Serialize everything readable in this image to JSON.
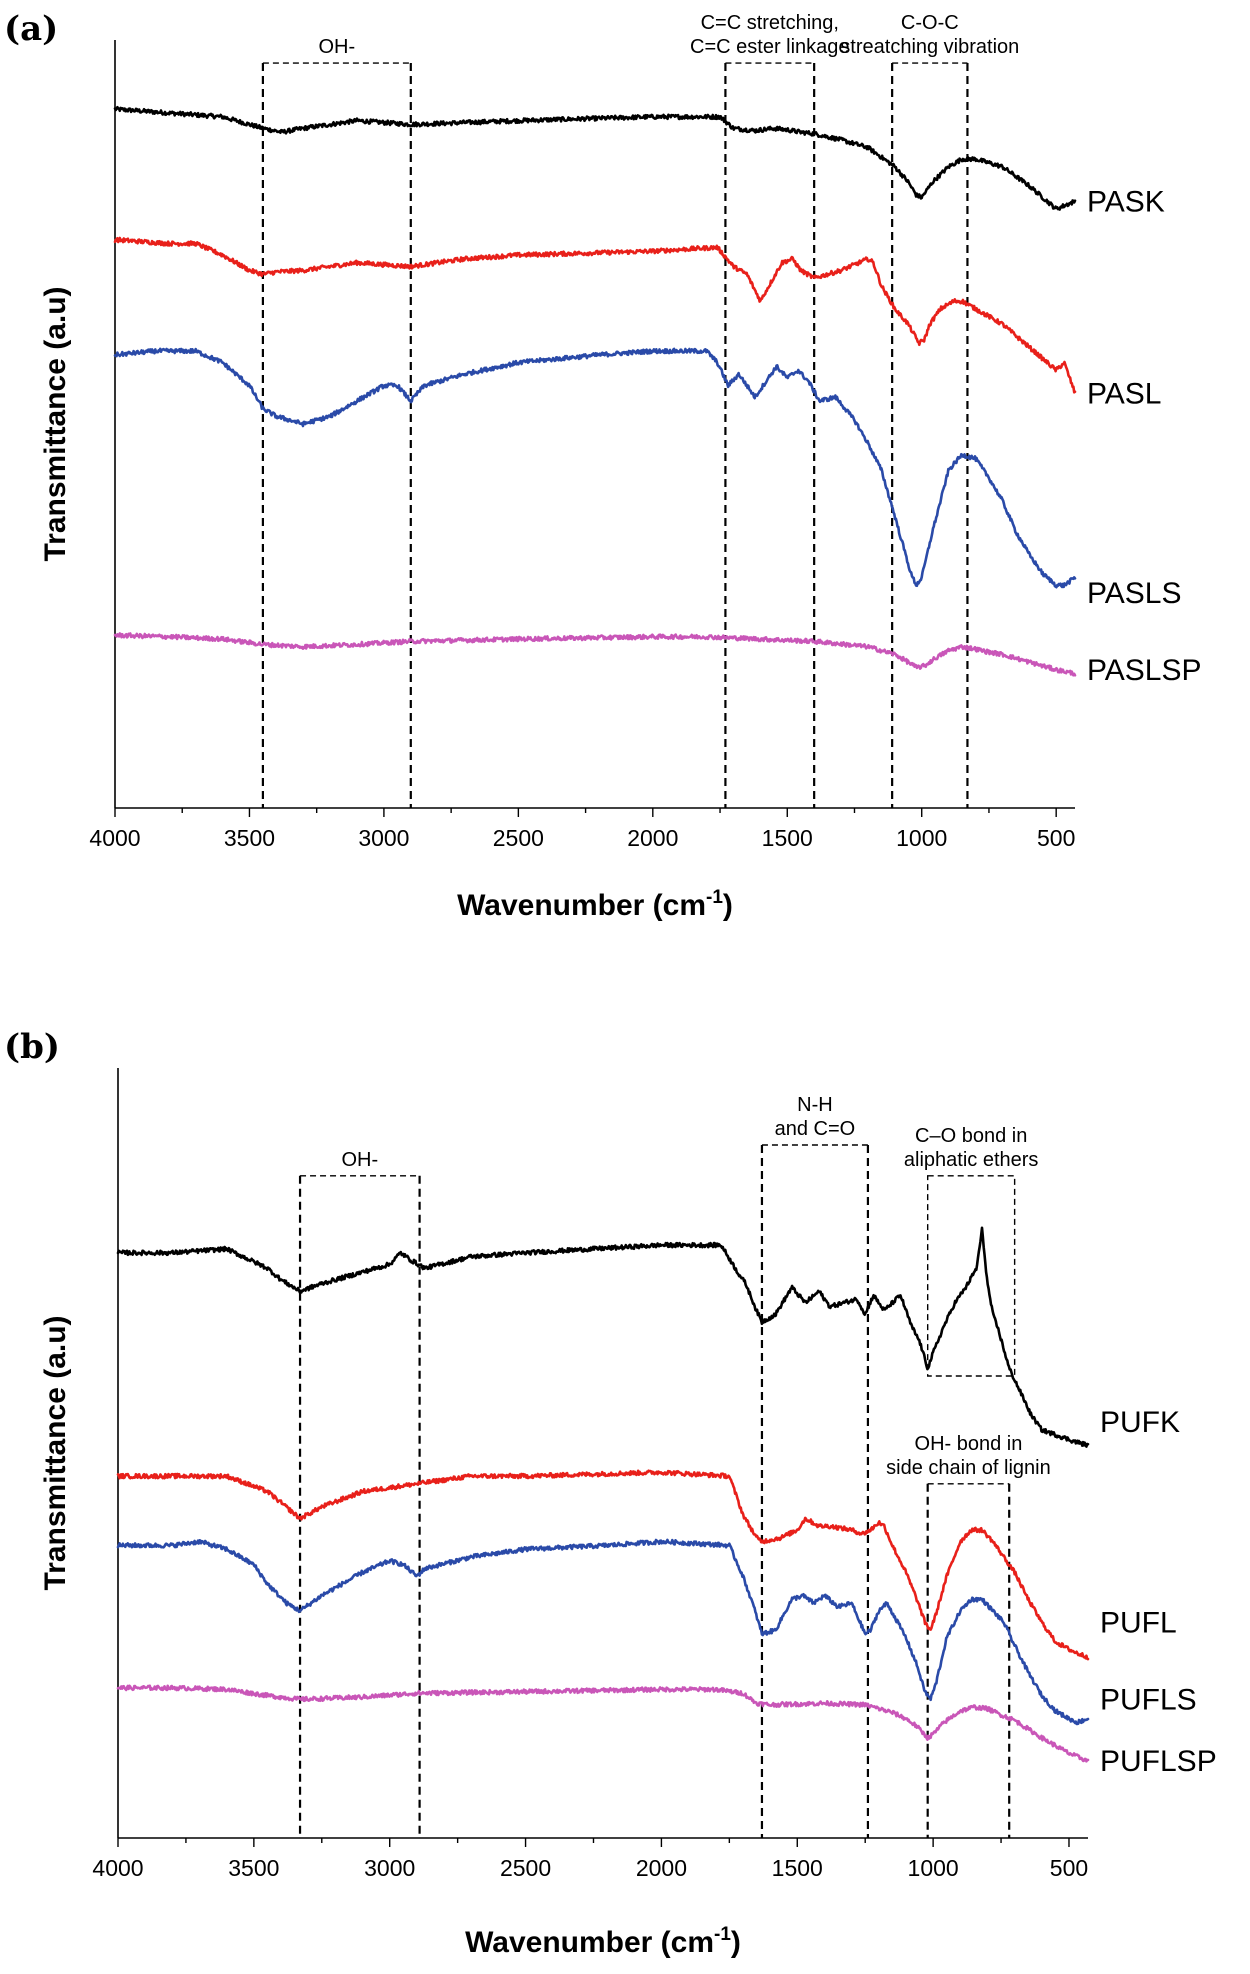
{
  "chart_data": [
    {
      "type": "line",
      "panel_label": "(a)",
      "xlabel": "Wavenumber (cm",
      "xlabel_sup": "-1",
      "xlabel_close": ")",
      "ylabel": "Transmittance (a.u)",
      "xlim": [
        4000,
        430
      ],
      "x_reversed": true,
      "ylim": [
        0,
        100
      ],
      "x_ticks": [
        4000,
        3500,
        3000,
        2500,
        2000,
        1500,
        1000,
        500
      ],
      "y_ticks_shown": false,
      "grid": false,
      "legend": "inline-right",
      "annotations": [
        {
          "lines": [
            "OH-"
          ],
          "x_range": [
            3450,
            2900
          ],
          "top": 97
        },
        {
          "lines": [
            "C=C stretching,",
            "C=C ester linkage"
          ],
          "x_range": [
            1730,
            1400
          ],
          "top": 97
        },
        {
          "lines": [
            "C-O-C",
            "streatching vibration"
          ],
          "x_range": [
            1110,
            830
          ],
          "top": 97
        }
      ],
      "series": [
        {
          "name": "PASK",
          "color": "#000000",
          "label_value": 79,
          "x": [
            4000,
            3800,
            3600,
            3450,
            3380,
            3300,
            3100,
            2900,
            2500,
            2000,
            1750,
            1700,
            1620,
            1550,
            1500,
            1450,
            1400,
            1300,
            1200,
            1100,
            1050,
            1020,
            1000,
            960,
            900,
            850,
            800,
            700,
            600,
            500,
            430
          ],
          "y": [
            91,
            90.5,
            90,
            88.5,
            88,
            88.5,
            89.5,
            89,
            89.5,
            90,
            90,
            88.5,
            88.2,
            88.5,
            88.3,
            88,
            87.8,
            87,
            86,
            83.5,
            81.5,
            79.8,
            79.5,
            81.5,
            83.5,
            84.5,
            84.5,
            83.5,
            81,
            78,
            79
          ]
        },
        {
          "name": "PASL",
          "color": "#e8201a",
          "label_value": 54,
          "x": [
            4000,
            3800,
            3700,
            3600,
            3500,
            3450,
            3400,
            3300,
            3100,
            2900,
            2700,
            2500,
            2000,
            1760,
            1700,
            1650,
            1600,
            1560,
            1520,
            1480,
            1450,
            1400,
            1300,
            1200,
            1180,
            1150,
            1100,
            1050,
            1010,
            990,
            970,
            930,
            880,
            850,
            800,
            700,
            600,
            500,
            470,
            430
          ],
          "y": [
            74,
            73.5,
            73.5,
            72,
            70,
            69.5,
            69.8,
            70,
            71,
            70.5,
            71.5,
            72,
            72.5,
            73,
            70.5,
            69.5,
            66,
            68.5,
            71,
            71.5,
            70,
            69,
            70,
            71.5,
            71,
            68,
            65,
            63,
            60.5,
            61,
            63,
            65,
            66,
            66,
            65,
            63,
            60,
            57,
            58,
            54
          ]
        },
        {
          "name": "PASLS",
          "color": "#2a4aa8",
          "label_value": 28,
          "x": [
            4000,
            3850,
            3700,
            3600,
            3500,
            3450,
            3400,
            3300,
            3200,
            3100,
            3000,
            2950,
            2900,
            2850,
            2700,
            2500,
            2200,
            2000,
            1800,
            1760,
            1720,
            1680,
            1620,
            1580,
            1540,
            1500,
            1460,
            1420,
            1380,
            1320,
            1250,
            1200,
            1150,
            1100,
            1060,
            1040,
            1020,
            1000,
            960,
            900,
            850,
            800,
            750,
            700,
            650,
            600,
            550,
            500,
            470,
            430
          ],
          "y": [
            59,
            59.5,
            59.5,
            58,
            55,
            52,
            51,
            50,
            51,
            53,
            55,
            55,
            53,
            55,
            56.5,
            58,
            59,
            59.5,
            59.5,
            58,
            55,
            56.5,
            53.5,
            55.5,
            57.5,
            56,
            57,
            55.5,
            53,
            53.5,
            50.5,
            47.5,
            44,
            38,
            33,
            30.5,
            29,
            30,
            36,
            44,
            46,
            45.5,
            43,
            40,
            36,
            33,
            30.5,
            29,
            29,
            30
          ]
        },
        {
          "name": "PASLSP",
          "color": "#c956b8",
          "label_value": 18,
          "x": [
            4000,
            3800,
            3600,
            3450,
            3300,
            3100,
            2900,
            2500,
            2000,
            1800,
            1600,
            1400,
            1200,
            1100,
            1050,
            1020,
            990,
            950,
            900,
            850,
            800,
            750,
            700,
            600,
            500,
            430
          ],
          "y": [
            22.5,
            22.3,
            22,
            21.3,
            21,
            21.3,
            21.7,
            22,
            22.3,
            22.3,
            22,
            21.7,
            21,
            20,
            19,
            18.3,
            18.5,
            19.5,
            20.5,
            21,
            20.7,
            20.3,
            20,
            19,
            18,
            17.5
          ]
        }
      ]
    },
    {
      "type": "line",
      "panel_label": "(b)",
      "xlabel": "Wavenumber (cm",
      "xlabel_sup": "-1",
      "xlabel_close": ")",
      "ylabel": "Transmittance (a.u)",
      "xlim": [
        4000,
        430
      ],
      "x_reversed": true,
      "ylim": [
        0,
        100
      ],
      "x_ticks": [
        4000,
        3500,
        3000,
        2500,
        2000,
        1500,
        1000,
        500
      ],
      "y_ticks_shown": false,
      "grid": false,
      "legend": "inline-right",
      "annotations": [
        {
          "lines": [
            "OH-"
          ],
          "x_range": [
            3330,
            2890
          ],
          "top": 86
        },
        {
          "lines": [
            "N-H",
            "and C=O"
          ],
          "x_range": [
            1630,
            1240
          ],
          "top": 90
        },
        {
          "lines": [
            "C–O bond in",
            "aliphatic ethers"
          ],
          "x_range": [
            1020,
            700
          ],
          "top": 86,
          "bottom": 60
        },
        {
          "lines": [
            "OH- bond in",
            "side chain of lignin"
          ],
          "x_range": [
            1020,
            720
          ],
          "top": 46
        }
      ],
      "series": [
        {
          "name": "PUFK",
          "color": "#000000",
          "label_value": 54,
          "x": [
            4000,
            3800,
            3600,
            3450,
            3400,
            3330,
            3250,
            3100,
            3000,
            2960,
            2920,
            2870,
            2700,
            2500,
            2000,
            1780,
            1720,
            1690,
            1650,
            1630,
            1580,
            1520,
            1470,
            1420,
            1380,
            1330,
            1280,
            1250,
            1220,
            1180,
            1120,
            1080,
            1050,
            1020,
            1000,
            960,
            920,
            880,
            840,
            820,
            800,
            780,
            760,
            720,
            680,
            640,
            600,
            560,
            520,
            480,
            430
          ],
          "y": [
            76,
            76,
            76.5,
            74,
            72.5,
            71,
            72,
            73.5,
            74.5,
            76,
            75,
            74,
            75.5,
            76,
            77,
            77,
            73.5,
            72,
            68.5,
            67,
            68,
            71.5,
            69.5,
            71,
            69,
            69.5,
            70,
            68,
            70.5,
            68.5,
            70.5,
            66.5,
            64.5,
            61,
            63,
            66.5,
            69.5,
            71.5,
            74,
            79,
            72,
            68,
            66,
            61,
            58,
            55,
            53,
            52.5,
            52,
            51.5,
            51
          ]
        },
        {
          "name": "PUFL",
          "color": "#e8201a",
          "label_value": 28,
          "x": [
            4000,
            3800,
            3600,
            3450,
            3330,
            3250,
            3100,
            2900,
            2700,
            2500,
            2000,
            1750,
            1700,
            1650,
            1630,
            1560,
            1500,
            1470,
            1420,
            1380,
            1300,
            1260,
            1230,
            1200,
            1180,
            1150,
            1100,
            1060,
            1030,
            1010,
            990,
            950,
            900,
            860,
            820,
            780,
            740,
            700,
            650,
            600,
            550,
            500,
            470,
            430
          ],
          "y": [
            47,
            47,
            47,
            45,
            41.5,
            43,
            45,
            46,
            47,
            47,
            47.5,
            47,
            42,
            39,
            38.5,
            39,
            40,
            41.5,
            40.5,
            40.5,
            40,
            39.5,
            40,
            41,
            40.5,
            38,
            34.5,
            31,
            28,
            27,
            29,
            34,
            38.5,
            40,
            40,
            38.5,
            36.5,
            34.5,
            31,
            28,
            25.5,
            24.5,
            24,
            23.5
          ]
        },
        {
          "name": "PUFLS",
          "color": "#2a4aa8",
          "label_value": 18,
          "x": [
            4000,
            3800,
            3700,
            3600,
            3500,
            3450,
            3380,
            3330,
            3250,
            3100,
            3000,
            2950,
            2900,
            2870,
            2700,
            2500,
            2200,
            2000,
            1750,
            1700,
            1660,
            1630,
            1580,
            1520,
            1480,
            1440,
            1400,
            1350,
            1300,
            1250,
            1230,
            1200,
            1170,
            1130,
            1100,
            1060,
            1030,
            1010,
            990,
            950,
            900,
            860,
            820,
            780,
            740,
            700,
            650,
            600,
            550,
            500,
            470,
            430
          ],
          "y": [
            38,
            38,
            38.5,
            37.5,
            35.5,
            33,
            30.5,
            29.5,
            31.5,
            34.5,
            36,
            35.5,
            34,
            35,
            36.5,
            37.5,
            38,
            38.5,
            38,
            34,
            30,
            26.5,
            27,
            31,
            31.5,
            30.5,
            31.5,
            30,
            30.5,
            26.5,
            27,
            29.5,
            30.5,
            28,
            26,
            22.5,
            19,
            18,
            20,
            26,
            29.5,
            31,
            31,
            29.5,
            28,
            25,
            21.5,
            18.5,
            16.5,
            15.5,
            15,
            15.5
          ]
        },
        {
          "name": "PUFLSP",
          "color": "#c956b8",
          "label_value": 10,
          "x": [
            4000,
            3800,
            3600,
            3450,
            3330,
            3100,
            2900,
            2500,
            2000,
            1800,
            1700,
            1650,
            1600,
            1400,
            1250,
            1150,
            1100,
            1060,
            1020,
            1000,
            960,
            900,
            850,
            800,
            750,
            700,
            600,
            500,
            430
          ],
          "y": [
            19.5,
            19.5,
            19.3,
            18.5,
            18,
            18.3,
            18.8,
            19,
            19.3,
            19.3,
            18.8,
            17.5,
            17.3,
            17.5,
            17.3,
            16.3,
            15.5,
            14.5,
            13,
            13.5,
            15,
            16.5,
            17,
            16.8,
            16,
            15.3,
            13,
            11,
            10
          ]
        }
      ]
    }
  ]
}
